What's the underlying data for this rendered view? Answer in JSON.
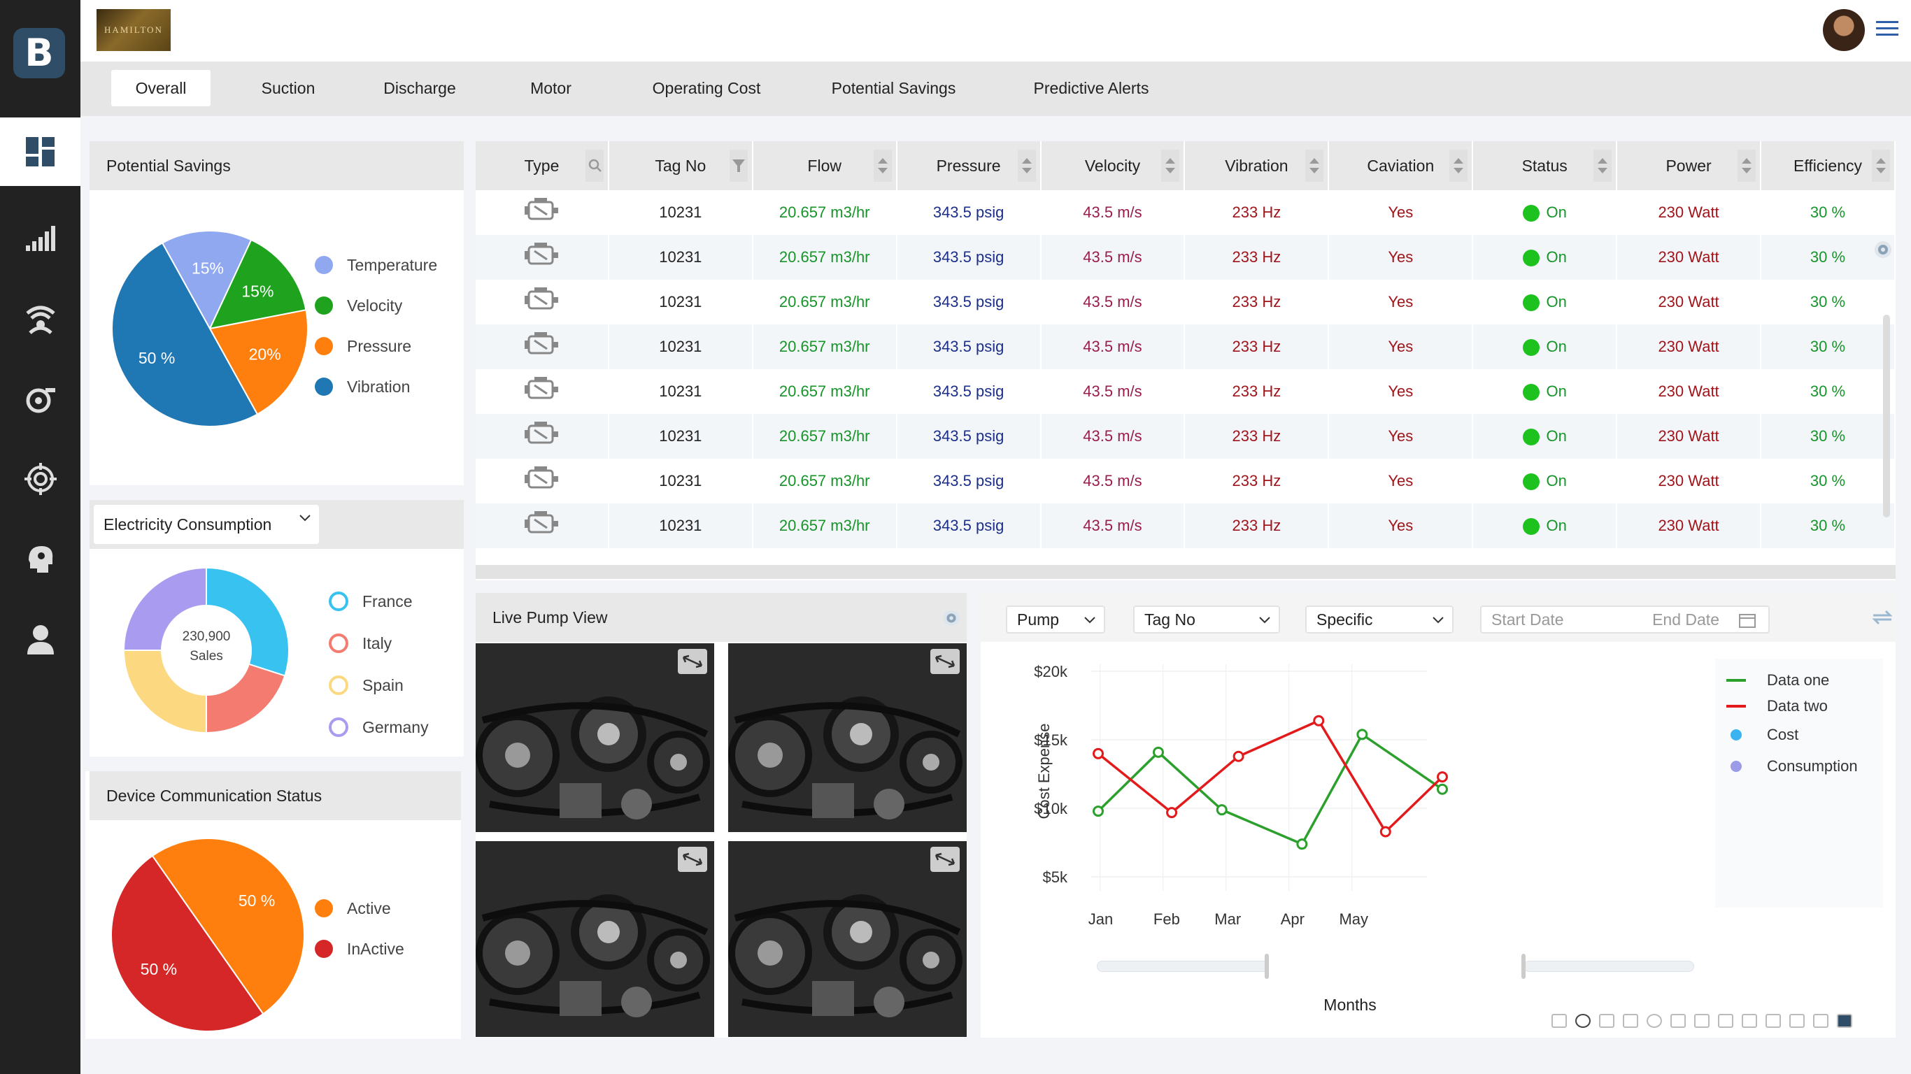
{
  "sidebar": {
    "logo": "B"
  },
  "header": {
    "brand": "HAMILTON"
  },
  "tabs": [
    {
      "label": "Overall"
    },
    {
      "label": "Suction"
    },
    {
      "label": "Discharge"
    },
    {
      "label": "Motor"
    },
    {
      "label": "Operating Cost"
    },
    {
      "label": "Potential Savings"
    },
    {
      "label": "Predictive Alerts"
    }
  ],
  "potential_savings": {
    "title": "Potential Savings",
    "slices": [
      {
        "label": "Temperature",
        "value": 15,
        "text": "15%",
        "color": "#8fa8ef"
      },
      {
        "label": "Velocity",
        "value": 15,
        "text": "15%",
        "color": "#1fa31f"
      },
      {
        "label": "Pressure",
        "value": 20,
        "text": "20%",
        "color": "#ff7f0e"
      },
      {
        "label": "Vibration",
        "value": 50,
        "text": "50 %",
        "color": "#1f77b4"
      }
    ]
  },
  "electricity": {
    "select": "Electricity Consumption",
    "center_value": "230,900",
    "center_label": "Sales",
    "slices": [
      {
        "label": "France",
        "value": 30,
        "color": "#37c2f0"
      },
      {
        "label": "Italy",
        "value": 20,
        "color": "#f47b6f"
      },
      {
        "label": "Spain",
        "value": 25,
        "color": "#fcd980"
      },
      {
        "label": "Germany",
        "value": 25,
        "color": "#a99cf0"
      }
    ]
  },
  "device_status": {
    "title": "Device Communication Status",
    "slices": [
      {
        "label": "Active",
        "value": 50,
        "text": "50 %",
        "color": "#ff7f0e"
      },
      {
        "label": "InActive",
        "value": 50,
        "text": "50 %",
        "color": "#d62728"
      }
    ]
  },
  "table": {
    "columns": [
      "Type",
      "Tag No",
      "Flow",
      "Pressure",
      "Velocity",
      "Vibration",
      "Caviation",
      "Status",
      "Power",
      "Efficiency"
    ],
    "rows": [
      {
        "tag": "10231",
        "flow": "20.657 m3/hr",
        "pressure": "343.5 psig",
        "velocity": "43.5 m/s",
        "vibration": "233 Hz",
        "caviation": "Yes",
        "status": "On",
        "power": "230 Watt",
        "efficiency": "30 %"
      },
      {
        "tag": "10231",
        "flow": "20.657 m3/hr",
        "pressure": "343.5 psig",
        "velocity": "43.5 m/s",
        "vibration": "233 Hz",
        "caviation": "Yes",
        "status": "On",
        "power": "230 Watt",
        "efficiency": "30 %"
      },
      {
        "tag": "10231",
        "flow": "20.657 m3/hr",
        "pressure": "343.5 psig",
        "velocity": "43.5 m/s",
        "vibration": "233 Hz",
        "caviation": "Yes",
        "status": "On",
        "power": "230 Watt",
        "efficiency": "30 %"
      },
      {
        "tag": "10231",
        "flow": "20.657 m3/hr",
        "pressure": "343.5 psig",
        "velocity": "43.5 m/s",
        "vibration": "233 Hz",
        "caviation": "Yes",
        "status": "On",
        "power": "230 Watt",
        "efficiency": "30 %"
      },
      {
        "tag": "10231",
        "flow": "20.657 m3/hr",
        "pressure": "343.5 psig",
        "velocity": "43.5 m/s",
        "vibration": "233 Hz",
        "caviation": "Yes",
        "status": "On",
        "power": "230 Watt",
        "efficiency": "30 %"
      },
      {
        "tag": "10231",
        "flow": "20.657 m3/hr",
        "pressure": "343.5 psig",
        "velocity": "43.5 m/s",
        "vibration": "233 Hz",
        "caviation": "Yes",
        "status": "On",
        "power": "230 Watt",
        "efficiency": "30 %"
      },
      {
        "tag": "10231",
        "flow": "20.657 m3/hr",
        "pressure": "343.5 psig",
        "velocity": "43.5 m/s",
        "vibration": "233 Hz",
        "caviation": "Yes",
        "status": "On",
        "power": "230 Watt",
        "efficiency": "30 %"
      },
      {
        "tag": "10231",
        "flow": "20.657 m3/hr",
        "pressure": "343.5 psig",
        "velocity": "43.5 m/s",
        "vibration": "233 Hz",
        "caviation": "Yes",
        "status": "On",
        "power": "230 Watt",
        "efficiency": "30 %"
      }
    ]
  },
  "live_view": {
    "title": "Live Pump View"
  },
  "filters": {
    "pump": "Pump",
    "tag": "Tag No",
    "specific": "Specific",
    "start_placeholder": "Start Date",
    "end_placeholder": "End Date"
  },
  "chart_data": {
    "type": "line",
    "x": [
      "Jan",
      "Feb",
      "Mar",
      "Apr",
      "May"
    ],
    "xlabel": "Months",
    "ylabel": "Cost Expense",
    "yticks": [
      "$5k",
      "$10k",
      "$15k",
      "$20k"
    ],
    "ylim": [
      5000,
      20000
    ],
    "series": [
      {
        "name": "Data one",
        "color": "#2ca02c",
        "points": [
          [
            0,
            10300
          ],
          [
            0.9,
            14600
          ],
          [
            1.85,
            10400
          ],
          [
            3.05,
            7900
          ],
          [
            3.95,
            15900
          ],
          [
            5.15,
            11900
          ]
        ]
      },
      {
        "name": "Data two",
        "color": "#e31a1c",
        "points": [
          [
            0,
            14500
          ],
          [
            1.1,
            10200
          ],
          [
            2.1,
            14300
          ],
          [
            3.3,
            16900
          ],
          [
            4.3,
            8800
          ],
          [
            5.15,
            12800
          ]
        ]
      }
    ],
    "legend": [
      "Data one",
      "Data two",
      "Cost",
      "Consumption"
    ],
    "legend_colors": [
      "#2ca02c",
      "#e31a1c",
      "#3bb3f0",
      "#9b9be8"
    ]
  }
}
